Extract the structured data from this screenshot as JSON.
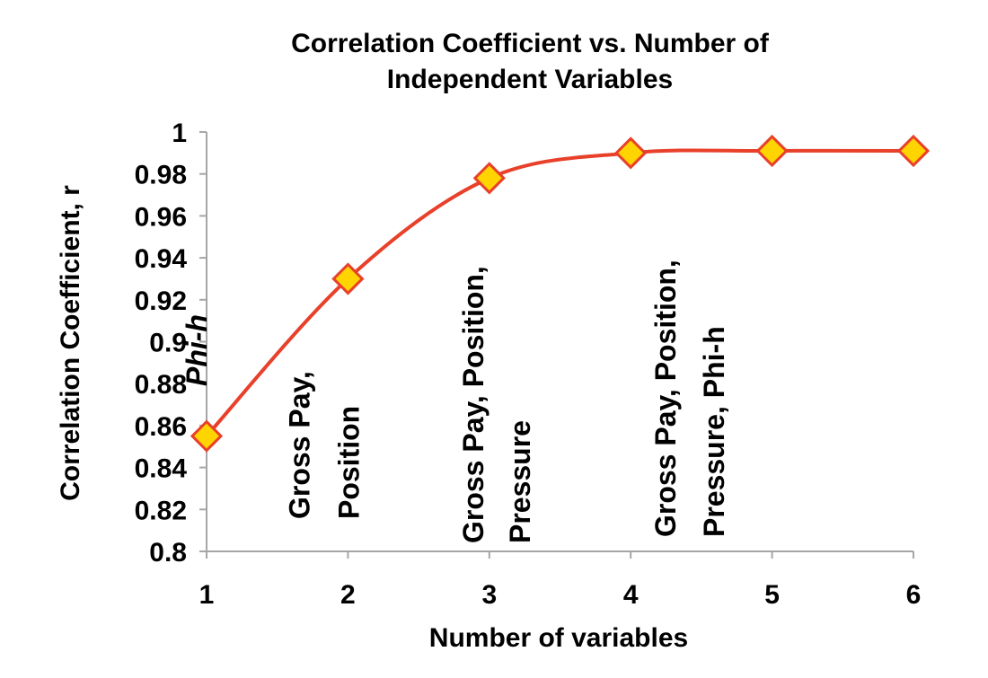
{
  "chart_data": {
    "type": "line",
    "title_line1": "Correlation Coefficient vs. Number of",
    "title_line2": "Independent Variables",
    "xlabel": "Number of variables",
    "ylabel": "Correlation Coefficient, r",
    "x": [
      1,
      2,
      3,
      4,
      5,
      6
    ],
    "series": [
      {
        "values": [
          0.855,
          0.93,
          0.978,
          0.99,
          0.991,
          0.991
        ]
      }
    ],
    "xlim": [
      1,
      6
    ],
    "ylim": [
      0.8,
      1.0
    ],
    "x_ticks": [
      "1",
      "2",
      "3",
      "4",
      "5",
      "6"
    ],
    "y_ticks": [
      "0.8",
      "0.82",
      "0.84",
      "0.86",
      "0.88",
      "0.9",
      "0.92",
      "0.94",
      "0.96",
      "0.98",
      "1"
    ],
    "smoothed": true,
    "line_color": "#e8402a",
    "marker_fill": "#ffd400",
    "marker_stroke": "#e8402a",
    "marker_shape": "diamond",
    "grid": false,
    "legend": "none",
    "annotations": [
      {
        "x": 1,
        "lines": [
          "Phi-h"
        ],
        "italic": true
      },
      {
        "x": 2,
        "lines": [
          "Gross Pay,",
          "Position"
        ],
        "italic": false
      },
      {
        "x": 3,
        "lines": [
          "Gross Pay, Position,",
          "Pressure"
        ],
        "italic": false
      },
      {
        "x": 4,
        "lines": [
          "Gross Pay, Position,",
          "Pressure, Phi-h"
        ],
        "italic": false
      }
    ]
  }
}
